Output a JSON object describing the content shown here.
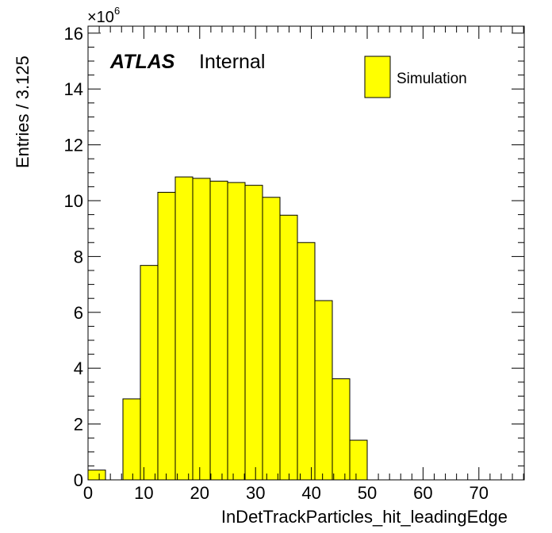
{
  "chart_data": {
    "type": "bar",
    "title": "",
    "xlabel": "InDetTrackParticles_hit_leadingEdge",
    "ylabel": "Entries / 3.125",
    "xlim": [
      0,
      78.125
    ],
    "ylim": [
      0,
      16.25
    ],
    "y_multiplier": "×10",
    "y_multiplier_exp": "6",
    "bin_width": 3.125,
    "x_ticks": [
      "0",
      "10",
      "20",
      "30",
      "40",
      "50",
      "60",
      "70"
    ],
    "y_ticks": [
      "0",
      "2",
      "4",
      "6",
      "8",
      "10",
      "12",
      "14",
      "16"
    ],
    "series": [
      {
        "name": "Simulation",
        "color": "#ffff00",
        "bin_edges_low": [
          0,
          3.125,
          6.25,
          9.375,
          12.5,
          15.625,
          18.75,
          21.875,
          25,
          28.125,
          31.25,
          34.375,
          37.5,
          40.625,
          43.75,
          46.875,
          50,
          53.125,
          56.25,
          59.375,
          62.5,
          65.625,
          68.75,
          71.875,
          75
        ],
        "values": [
          0.35,
          0,
          2.9,
          7.68,
          10.3,
          10.85,
          10.8,
          10.7,
          10.65,
          10.55,
          10.12,
          9.48,
          8.5,
          6.42,
          3.62,
          1.42,
          0,
          0,
          0,
          0,
          0,
          0,
          0,
          0,
          0
        ]
      }
    ],
    "legend_position": "top-right",
    "grid": false
  },
  "labels": {
    "atlas": "ATLAS",
    "internal": "Internal",
    "legend_entry": "Simulation"
  }
}
